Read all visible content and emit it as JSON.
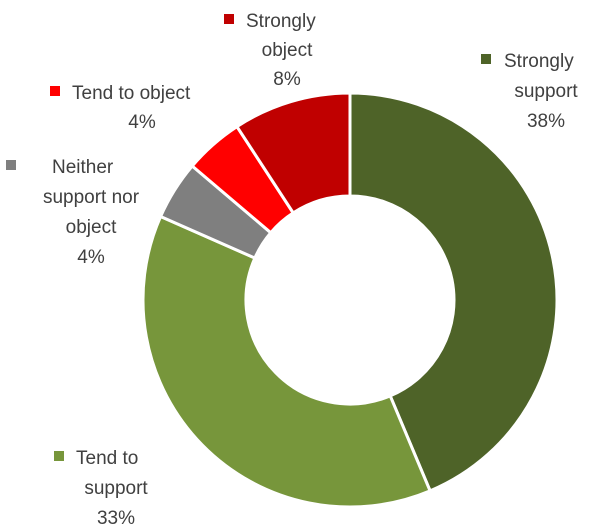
{
  "chart_data": {
    "type": "pie",
    "title": "",
    "categories": [
      "Strongly support",
      "Tend to support",
      "Neither support nor object",
      "Tend to object",
      "Strongly object"
    ],
    "values": [
      38,
      33,
      4,
      4,
      8
    ],
    "value_labels": [
      "38%",
      "33%",
      "4%",
      "4%",
      "8%"
    ],
    "label_lines": [
      [
        "Strongly",
        "support",
        "38%"
      ],
      [
        "Tend to",
        "support",
        "33%"
      ],
      [
        "Neither",
        "support nor",
        "object",
        "4%"
      ],
      [
        "Tend to object",
        "4%"
      ],
      [
        "Strongly",
        "object",
        "8%"
      ]
    ],
    "colors": [
      "#4e6328",
      "#77963b",
      "#7f7f7f",
      "#ff0000",
      "#c00000"
    ],
    "donut": true,
    "legend": "labels next to slices"
  }
}
